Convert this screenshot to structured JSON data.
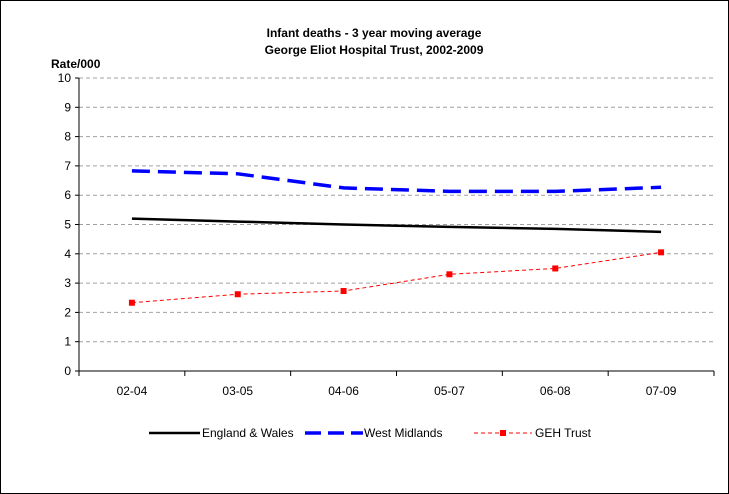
{
  "chart_data": {
    "type": "line",
    "title": "Infant deaths - 3 year moving average",
    "subtitle": "George Eliot Hospital Trust, 2002-2009",
    "ylabel": "Rate/000",
    "xlabel": "",
    "categories": [
      "02-04",
      "03-05",
      "04-06",
      "05-07",
      "06-08",
      "07-09"
    ],
    "ylim": [
      0,
      10
    ],
    "yticks": [
      0,
      1,
      2,
      3,
      4,
      5,
      6,
      7,
      8,
      9,
      10
    ],
    "grid": true,
    "legend_position": "bottom",
    "series": [
      {
        "name": "England & Wales",
        "values": [
          5.2,
          5.1,
          5.0,
          4.92,
          4.85,
          4.75
        ],
        "color": "#000000",
        "style": "solid"
      },
      {
        "name": "West Midlands",
        "values": [
          6.83,
          6.73,
          6.25,
          6.13,
          6.13,
          6.27
        ],
        "color": "#0000FF",
        "style": "dashed"
      },
      {
        "name": "GEH Trust",
        "values": [
          2.33,
          2.62,
          2.73,
          3.3,
          3.5,
          4.05
        ],
        "color": "#FF0000",
        "style": "dotted-square"
      }
    ]
  }
}
